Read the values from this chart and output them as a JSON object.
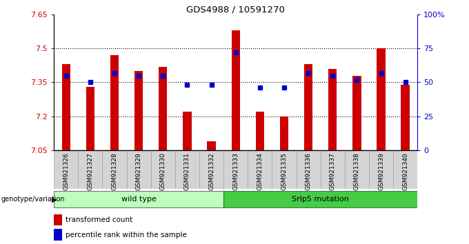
{
  "title": "GDS4988 / 10591270",
  "samples": [
    "GSM921326",
    "GSM921327",
    "GSM921328",
    "GSM921329",
    "GSM921330",
    "GSM921331",
    "GSM921332",
    "GSM921333",
    "GSM921334",
    "GSM921335",
    "GSM921336",
    "GSM921337",
    "GSM921338",
    "GSM921339",
    "GSM921340"
  ],
  "bar_values": [
    7.43,
    7.33,
    7.47,
    7.4,
    7.42,
    7.22,
    7.09,
    7.58,
    7.22,
    7.2,
    7.43,
    7.41,
    7.38,
    7.5,
    7.34
  ],
  "blue_values": [
    55,
    50,
    57,
    55,
    55,
    48,
    48,
    72,
    46,
    46,
    57,
    55,
    52,
    57,
    50
  ],
  "ymin": 7.05,
  "ymax": 7.65,
  "yticks": [
    7.05,
    7.2,
    7.35,
    7.5,
    7.65
  ],
  "ytick_labels": [
    "7.05",
    "7.2",
    "7.35",
    "7.5",
    "7.65"
  ],
  "y2min": 0,
  "y2max": 100,
  "y2ticks": [
    0,
    25,
    50,
    75,
    100
  ],
  "y2tick_labels": [
    "0",
    "25",
    "50",
    "75",
    "100%"
  ],
  "bar_color": "#cc0000",
  "blue_color": "#0000cc",
  "groups": [
    {
      "label": "wild type",
      "start": 0,
      "end": 7,
      "color": "#bbffbb"
    },
    {
      "label": "Srlp5 mutation",
      "start": 7,
      "end": 15,
      "color": "#44cc44"
    }
  ],
  "group_row_label": "genotype/variation",
  "legend_items": [
    {
      "label": "transformed count",
      "color": "#cc0000"
    },
    {
      "label": "percentile rank within the sample",
      "color": "#0000cc"
    }
  ],
  "left_axis_color": "#cc0000",
  "right_axis_color": "#0000cc",
  "bar_base": 7.05,
  "bar_width": 0.35
}
